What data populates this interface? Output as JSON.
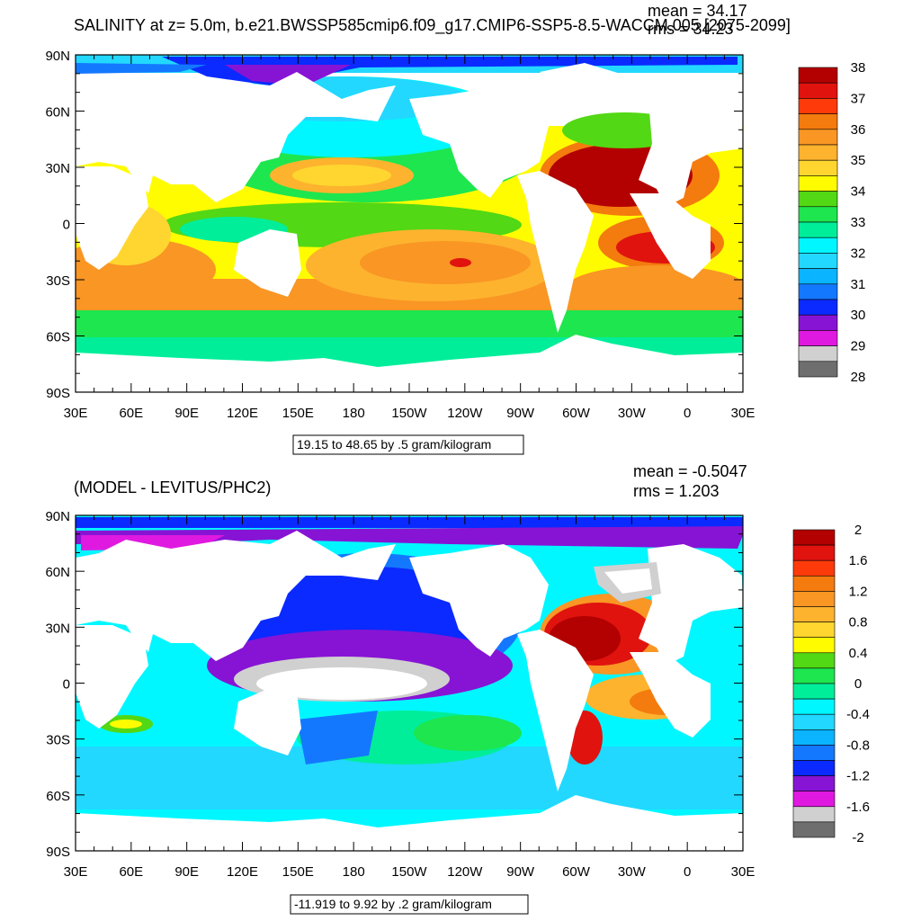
{
  "panel1": {
    "title": "SALINITY at z=   5.0m, b.e21.BWSSP585cmip6.f09_g17.CMIP6-SSP5-8.5-WACCM.005 [2075-2099]",
    "mean_label": "mean = 34.17",
    "rms_label": "rms = 34.23",
    "contour_info": "19.15 to 48.65 by .5 gram/kilogram",
    "colorbar_labels": [
      "38",
      "37",
      "36",
      "35",
      "34",
      "33",
      "32",
      "31",
      "30",
      "29",
      "28"
    ],
    "colorbar_colors": [
      "#b30000",
      "#e0130f",
      "#ff3a0a",
      "#f47b0e",
      "#f99624",
      "#fdb32e",
      "#ffd630",
      "#fffc00",
      "#52d814",
      "#1ee64e",
      "#00ee9a",
      "#00f7ff",
      "#22d8ff",
      "#0ab4ff",
      "#1478ff",
      "#0a2aff",
      "#8714d4",
      "#e019e0",
      "#d0d0d0",
      "#6e6e6e"
    ]
  },
  "panel2": {
    "title": "(MODEL - LEVITUS/PHC2)",
    "mean_label": "mean = -0.5047",
    "rms_label": "rms = 1.203",
    "contour_info": "-11.919 to 9.92 by .2 gram/kilogram",
    "colorbar_labels": [
      "2",
      "1.6",
      "1.2",
      "0.8",
      "0.4",
      "0",
      "-0.4",
      "-0.8",
      "-1.2",
      "-1.6",
      "-2"
    ],
    "colorbar_colors": [
      "#b30000",
      "#e0130f",
      "#ff3a0a",
      "#f47b0e",
      "#f99624",
      "#fdb32e",
      "#ffd630",
      "#fffc00",
      "#52d814",
      "#1ee64e",
      "#00ee9a",
      "#00f7ff",
      "#22d8ff",
      "#0ab4ff",
      "#1478ff",
      "#0a2aff",
      "#8714d4",
      "#e019e0",
      "#d0d0d0",
      "#6e6e6e"
    ]
  },
  "lat_labels": [
    "90N",
    "60N",
    "30N",
    "0",
    "30S",
    "60S",
    "90S"
  ],
  "lon_labels": [
    "30E",
    "60E",
    "90E",
    "120E",
    "150E",
    "180",
    "150W",
    "120W",
    "90W",
    "60W",
    "30W",
    "0",
    "30E"
  ]
}
